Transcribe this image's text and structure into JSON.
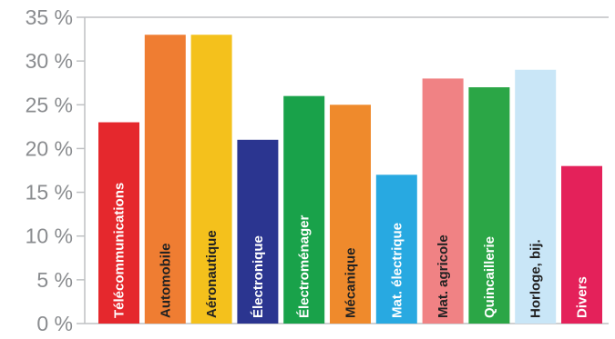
{
  "chart_data": {
    "type": "bar",
    "title": "",
    "xlabel": "",
    "ylabel": "",
    "ylim": [
      0,
      35
    ],
    "yticks": [
      "0 %",
      "5 %",
      "10 %",
      "15 %",
      "20 %",
      "25 %",
      "30 %",
      "35 %"
    ],
    "grid": false,
    "categories": [
      "Télécommunications",
      "Automobile",
      "Aéronautique",
      "Électronique",
      "Électroménager",
      "Mécanique",
      "Mat. électrique",
      "Mat. agricole",
      "Quincaillerie",
      "Horloge, bij.",
      "Divers"
    ],
    "values": [
      23,
      33,
      33,
      21,
      26,
      25,
      17,
      28,
      27,
      29,
      18
    ],
    "colors": [
      "#e5282d",
      "#ef7d32",
      "#f4c11c",
      "#2b3590",
      "#19a24a",
      "#ef8a2c",
      "#28a9e1",
      "#f08284",
      "#2ba646",
      "#c9e6f7",
      "#e4215a"
    ],
    "label_colors": [
      "#ffffff",
      "#222222",
      "#222222",
      "#ffffff",
      "#ffffff",
      "#222222",
      "#ffffff",
      "#222222",
      "#ffffff",
      "#222222",
      "#ffffff"
    ]
  }
}
